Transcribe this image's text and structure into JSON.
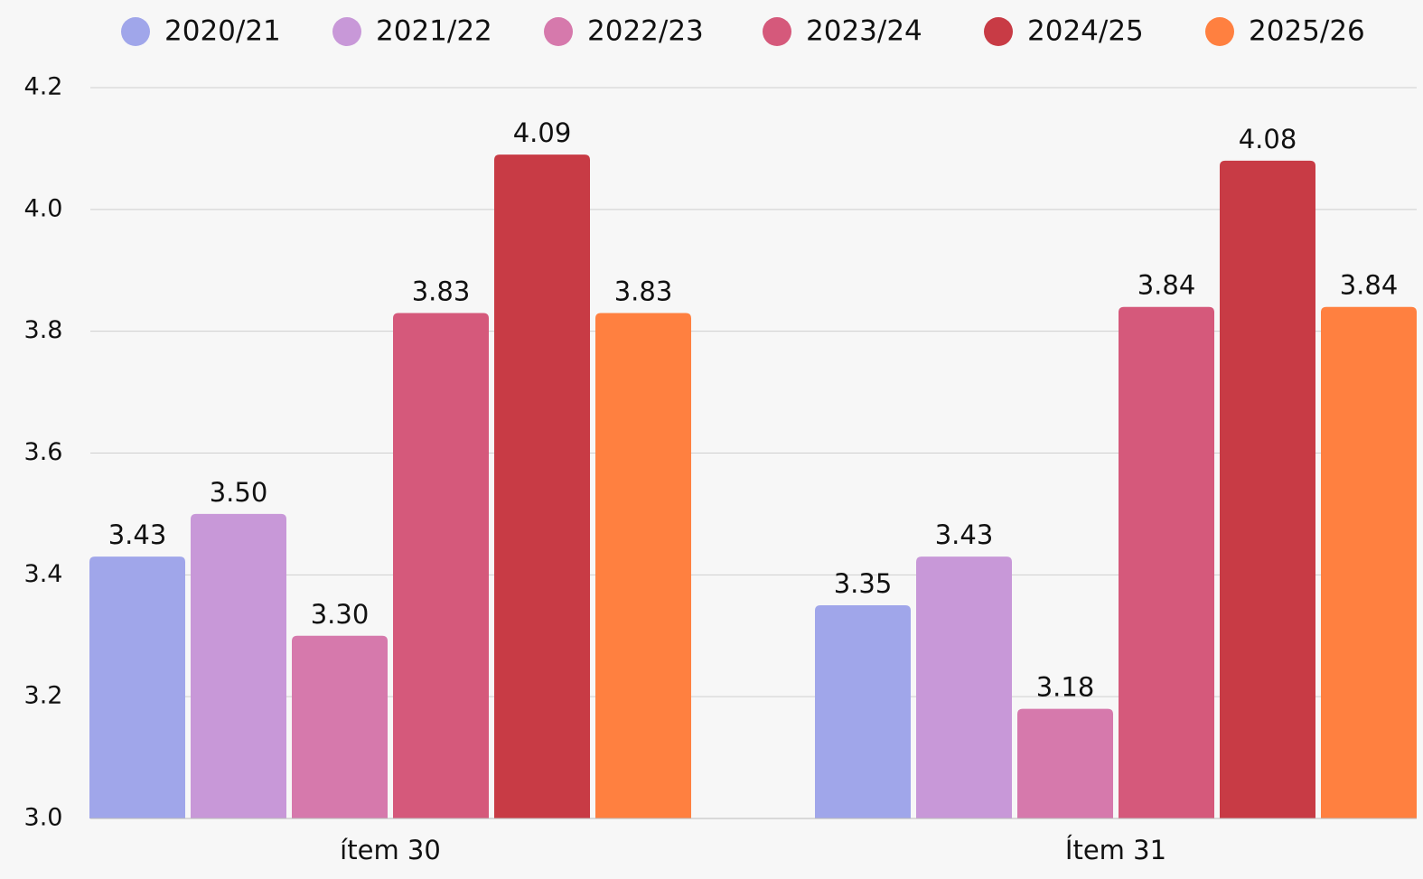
{
  "chart_data": {
    "type": "bar",
    "categories": [
      "ítem 30",
      "Ítem 31"
    ],
    "series": [
      {
        "name": "2020/21",
        "color": "#a0a6ea",
        "values": [
          3.43,
          3.35
        ]
      },
      {
        "name": "2021/22",
        "color": "#c898d8",
        "values": [
          3.5,
          3.43
        ],
        "value_labels": [
          "3.50",
          "3.43"
        ]
      },
      {
        "name": "2022/23",
        "color": "#d679ac",
        "values": [
          3.3,
          3.18
        ],
        "value_labels": [
          "3.30",
          "3.18"
        ]
      },
      {
        "name": "2023/24",
        "color": "#d5597b",
        "values": [
          3.83,
          3.84
        ]
      },
      {
        "name": "2024/25",
        "color": "#c83b45",
        "values": [
          4.09,
          4.08
        ]
      },
      {
        "name": "2025/26",
        "color": "#ff8040",
        "values": [
          3.83,
          3.84
        ]
      }
    ],
    "ylim": [
      3,
      4.2
    ],
    "yticks": [
      {
        "value": 3,
        "label": "3.0"
      },
      3.2,
      3.4,
      3.6,
      3.8,
      {
        "value": 4,
        "label": "4.0"
      },
      4.2
    ],
    "grid": true,
    "legend": "top"
  }
}
